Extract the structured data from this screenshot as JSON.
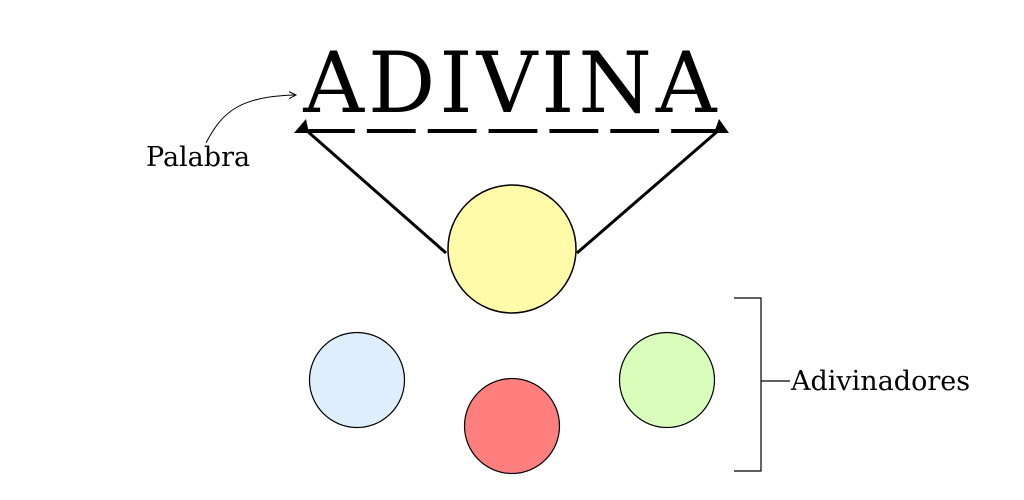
{
  "diagram": {
    "word": "ADIVINA",
    "blank_count": 7,
    "labels": {
      "word_label": "Palabra",
      "guessers_label": "Adivinadores"
    },
    "host": {
      "color": "#FFFBA8"
    },
    "guessers": [
      {
        "color": "#DEEEFC"
      },
      {
        "color": "#FE7F7E"
      },
      {
        "color": "#D9FEBC"
      }
    ]
  }
}
